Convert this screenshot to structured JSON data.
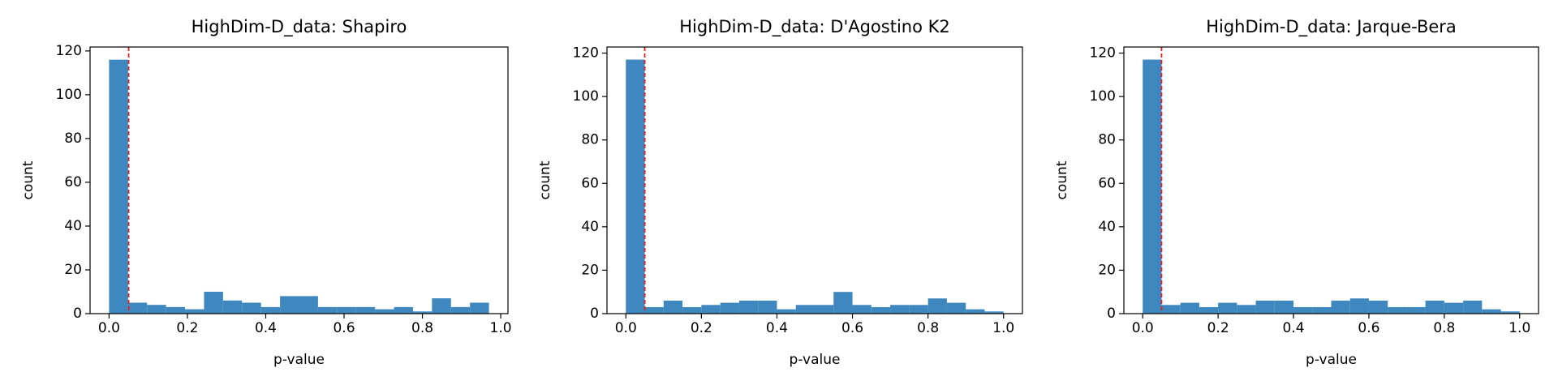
{
  "chart_data": [
    {
      "type": "histogram",
      "title": "HighDim-D_data: Shapiro",
      "xlabel": "p-value",
      "ylabel": "count",
      "bins": [
        0,
        0.0485,
        0.097,
        0.1455,
        0.194,
        0.2425,
        0.291,
        0.3395,
        0.388,
        0.4365,
        0.485,
        0.5335,
        0.582,
        0.6305,
        0.679,
        0.7275,
        0.776,
        0.8245,
        0.873,
        0.9215,
        0.97
      ],
      "values": [
        116,
        5,
        4,
        3,
        2,
        10,
        6,
        5,
        3,
        8,
        8,
        3,
        3,
        3,
        2,
        3,
        1,
        7,
        3,
        5
      ],
      "color": "#3f88bf",
      "threshold": 0.05,
      "threshold_color": "#e02020",
      "xlim": [
        -0.0485,
        1.0185
      ],
      "ylim": [
        0,
        121.8
      ],
      "xticks": [
        {
          "value": 0,
          "label": "0.0"
        },
        0.2,
        0.4,
        0.6,
        0.8,
        {
          "value": 1,
          "label": "1.0"
        }
      ],
      "yticks": [
        0,
        20,
        40,
        60,
        80,
        100,
        120
      ]
    },
    {
      "type": "histogram",
      "title": "HighDim-D_data: D'Agostino K2",
      "xlabel": "p-value",
      "ylabel": "count",
      "bins": [
        0,
        0.05,
        0.1,
        0.15,
        0.2,
        0.25,
        0.3,
        0.35,
        0.4,
        0.45,
        0.5,
        0.55,
        0.6,
        0.65,
        0.7,
        0.75,
        0.8,
        0.85,
        0.9,
        0.95,
        1
      ],
      "values": [
        117,
        3,
        6,
        3,
        4,
        5,
        6,
        6,
        2,
        4,
        4,
        10,
        4,
        3,
        4,
        4,
        7,
        5,
        2,
        1
      ],
      "color": "#3f88bf",
      "threshold": 0.05,
      "threshold_color": "#e02020",
      "xlim": [
        -0.05,
        1.05
      ],
      "ylim": [
        0,
        122.8
      ],
      "xticks": [
        {
          "value": 0,
          "label": "0.0"
        },
        0.2,
        0.4,
        0.6,
        0.8,
        {
          "value": 1,
          "label": "1.0"
        }
      ],
      "yticks": [
        0,
        20,
        40,
        60,
        80,
        100,
        120
      ]
    },
    {
      "type": "histogram",
      "title": "HighDim-D_data: Jarque-Bera",
      "xlabel": "p-value",
      "ylabel": "count",
      "bins": [
        0,
        0.05,
        0.1,
        0.15,
        0.2,
        0.25,
        0.3,
        0.35,
        0.4,
        0.45,
        0.5,
        0.55,
        0.6,
        0.65,
        0.7,
        0.75,
        0.8,
        0.85,
        0.9,
        0.95,
        1
      ],
      "values": [
        117,
        4,
        5,
        3,
        5,
        4,
        6,
        6,
        3,
        3,
        6,
        7,
        6,
        3,
        3,
        6,
        5,
        6,
        2,
        1
      ],
      "color": "#3f88bf",
      "threshold": 0.05,
      "threshold_color": "#e02020",
      "xlim": [
        -0.05,
        1.05
      ],
      "ylim": [
        0,
        122.8
      ],
      "xticks": [
        {
          "value": 0,
          "label": "0.0"
        },
        0.2,
        0.4,
        0.6,
        0.8,
        {
          "value": 1,
          "label": "1.0"
        }
      ],
      "yticks": [
        0,
        20,
        40,
        60,
        80,
        100,
        120
      ]
    }
  ]
}
